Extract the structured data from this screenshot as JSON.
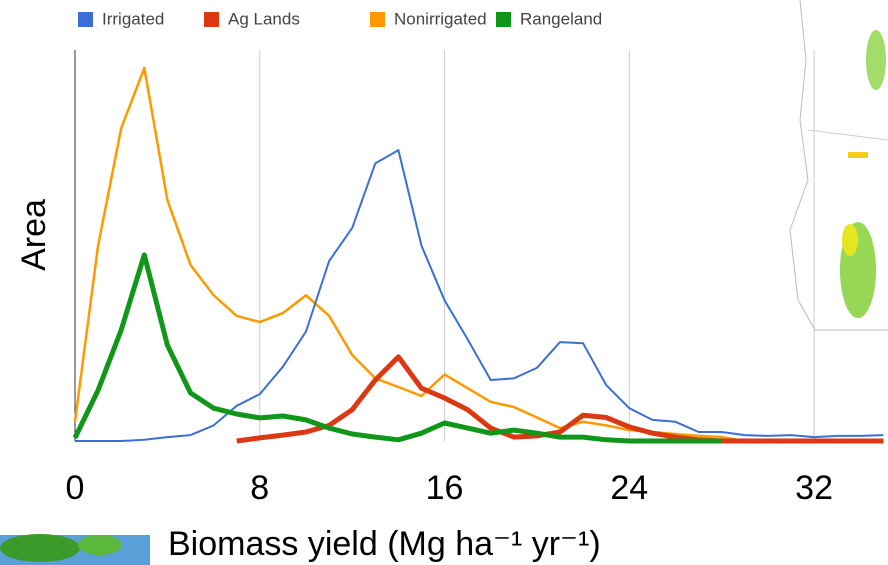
{
  "chart_data": {
    "type": "line",
    "x_label": "Biomass yield (Mg ha⁻¹ yr⁻¹)",
    "y_label": "Area",
    "x": [
      0,
      1,
      2,
      3,
      4,
      5,
      6,
      7,
      8,
      9,
      10,
      11,
      12,
      13,
      14,
      15,
      16,
      17,
      18,
      19,
      20,
      21,
      22,
      23,
      24,
      25,
      26,
      27,
      28,
      29,
      30,
      31,
      32,
      33,
      34,
      35
    ],
    "series": [
      {
        "name": "Irrigated",
        "color": "#3b6fd4",
        "values": [
          0,
          0,
          0,
          0.3,
          1,
          1.5,
          4,
          9,
          12,
          19,
          28,
          46,
          54.5,
          71,
          74.4,
          50,
          36,
          26,
          15.6,
          16,
          18.7,
          25.3,
          25,
          14.3,
          8.4,
          5.4,
          4.9,
          2.3,
          2.3,
          1.5,
          1.3,
          1.5,
          1,
          1.3,
          1.3,
          1.5
        ]
      },
      {
        "name": "Ag Lands",
        "color": "#dc3912",
        "values": [
          null,
          null,
          null,
          null,
          null,
          null,
          null,
          0,
          0.8,
          1.5,
          2.3,
          4,
          8,
          15.6,
          21.5,
          13.5,
          11,
          8,
          3.3,
          1,
          1.3,
          2.3,
          6.6,
          6,
          3.6,
          2,
          1,
          0.3,
          0,
          0,
          0,
          0,
          0,
          0,
          0,
          0
        ]
      },
      {
        "name": "Nonirrigated",
        "color": "#ff9900",
        "values": [
          5,
          50,
          80,
          95.4,
          61.6,
          45,
          37.3,
          32,
          30.4,
          32.7,
          37.3,
          32,
          22,
          16,
          13.8,
          11.5,
          17,
          13.5,
          10,
          8.7,
          6,
          3.3,
          4.9,
          4,
          2.8,
          2.3,
          1.8,
          1.3,
          1,
          0,
          null,
          null,
          null,
          null,
          null,
          null
        ]
      },
      {
        "name": "Rangeland",
        "color": "#109618",
        "values": [
          0.8,
          13,
          28.4,
          47.6,
          24.5,
          12.3,
          8.4,
          6.9,
          5.9,
          6.4,
          5.4,
          3.3,
          1.8,
          1,
          0.3,
          2,
          4.6,
          3.3,
          2,
          2.8,
          2,
          1,
          1,
          0.3,
          0,
          0,
          0,
          0,
          0,
          null,
          null,
          null,
          null,
          null,
          null,
          null
        ]
      }
    ],
    "xlim": [
      0,
      35.2
    ],
    "ylim": [
      0,
      100
    ],
    "xticks": [
      0,
      8,
      16,
      24,
      32
    ],
    "grid": true,
    "legend": "top"
  }
}
